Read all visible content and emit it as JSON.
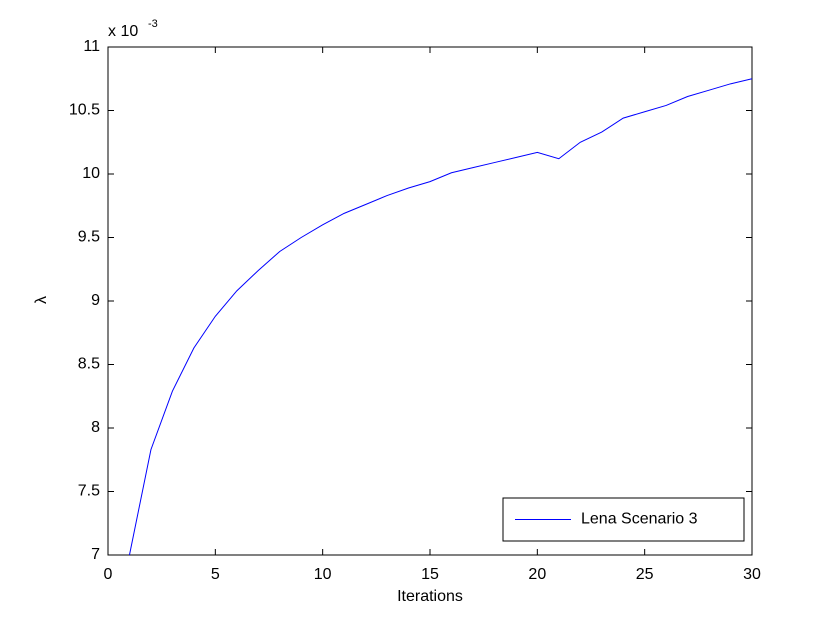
{
  "chart_data": {
    "type": "line",
    "x_label": "Iterations",
    "y_label": "λ",
    "y_scale_label": "x 10",
    "y_scale_exponent": "-3",
    "x": [
      1,
      2,
      3,
      4,
      5,
      6,
      7,
      8,
      9,
      10,
      11,
      12,
      13,
      14,
      15,
      16,
      17,
      18,
      19,
      20,
      21,
      22,
      23,
      24,
      25,
      26,
      27,
      28,
      29,
      30
    ],
    "series": [
      {
        "name": "Lena Scenario 3",
        "color": "#0000ff",
        "values": [
          7.0,
          7.83,
          8.29,
          8.63,
          8.88,
          9.08,
          9.24,
          9.39,
          9.5,
          9.6,
          9.69,
          9.76,
          9.83,
          9.89,
          9.94,
          10.01,
          10.05,
          10.09,
          10.13,
          10.17,
          10.12,
          10.25,
          10.33,
          10.44,
          10.49,
          10.54,
          10.61,
          10.66,
          10.71,
          10.75
        ]
      }
    ],
    "xlim": [
      0,
      30
    ],
    "xticks": [
      0,
      5,
      10,
      15,
      20,
      25,
      30
    ],
    "ylim": [
      7,
      11
    ],
    "yticks": [
      7,
      7.5,
      8,
      8.5,
      9,
      9.5,
      10,
      10.5,
      11
    ],
    "grid": false,
    "legend": "lower right"
  }
}
